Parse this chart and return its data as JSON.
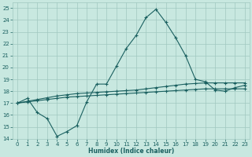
{
  "xlabel": "Humidex (Indice chaleur)",
  "bg_color": "#c8e8e0",
  "grid_color": "#a0c8c0",
  "line_color": "#1a6060",
  "xlim": [
    -0.5,
    23.5
  ],
  "ylim": [
    14,
    25.5
  ],
  "xticks": [
    0,
    1,
    2,
    3,
    4,
    5,
    6,
    7,
    8,
    9,
    10,
    11,
    12,
    13,
    14,
    15,
    16,
    17,
    18,
    19,
    20,
    21,
    22,
    23
  ],
  "yticks": [
    14,
    15,
    16,
    17,
    18,
    19,
    20,
    21,
    22,
    23,
    24,
    25
  ],
  "line1_x": [
    0,
    1,
    2,
    3,
    4,
    5,
    6,
    7,
    8,
    9,
    10,
    11,
    12,
    13,
    14,
    15,
    16,
    17,
    18,
    19,
    20,
    21,
    22,
    23
  ],
  "line1_y": [
    17.0,
    17.4,
    16.2,
    15.7,
    14.2,
    14.6,
    15.1,
    17.1,
    18.6,
    18.6,
    20.1,
    21.6,
    22.7,
    24.2,
    24.9,
    23.8,
    22.5,
    21.0,
    19.0,
    18.8,
    18.1,
    18.0,
    18.3,
    18.5
  ],
  "line2_x": [
    0,
    1,
    2,
    3,
    4,
    5,
    6,
    7,
    8,
    9,
    10,
    11,
    12,
    13,
    14,
    15,
    16,
    17,
    18,
    19,
    20,
    21,
    22,
    23
  ],
  "line2_y": [
    17.0,
    17.15,
    17.3,
    17.45,
    17.6,
    17.7,
    17.8,
    17.85,
    17.9,
    17.95,
    18.0,
    18.05,
    18.1,
    18.2,
    18.3,
    18.4,
    18.5,
    18.6,
    18.65,
    18.7,
    18.7,
    18.7,
    18.7,
    18.7
  ],
  "line3_x": [
    0,
    1,
    2,
    3,
    4,
    5,
    6,
    7,
    8,
    9,
    10,
    11,
    12,
    13,
    14,
    15,
    16,
    17,
    18,
    19,
    20,
    21,
    22,
    23
  ],
  "line3_y": [
    17.0,
    17.1,
    17.2,
    17.3,
    17.4,
    17.5,
    17.55,
    17.6,
    17.65,
    17.7,
    17.75,
    17.8,
    17.85,
    17.9,
    17.95,
    18.0,
    18.05,
    18.1,
    18.15,
    18.2,
    18.2,
    18.2,
    18.2,
    18.2
  ]
}
